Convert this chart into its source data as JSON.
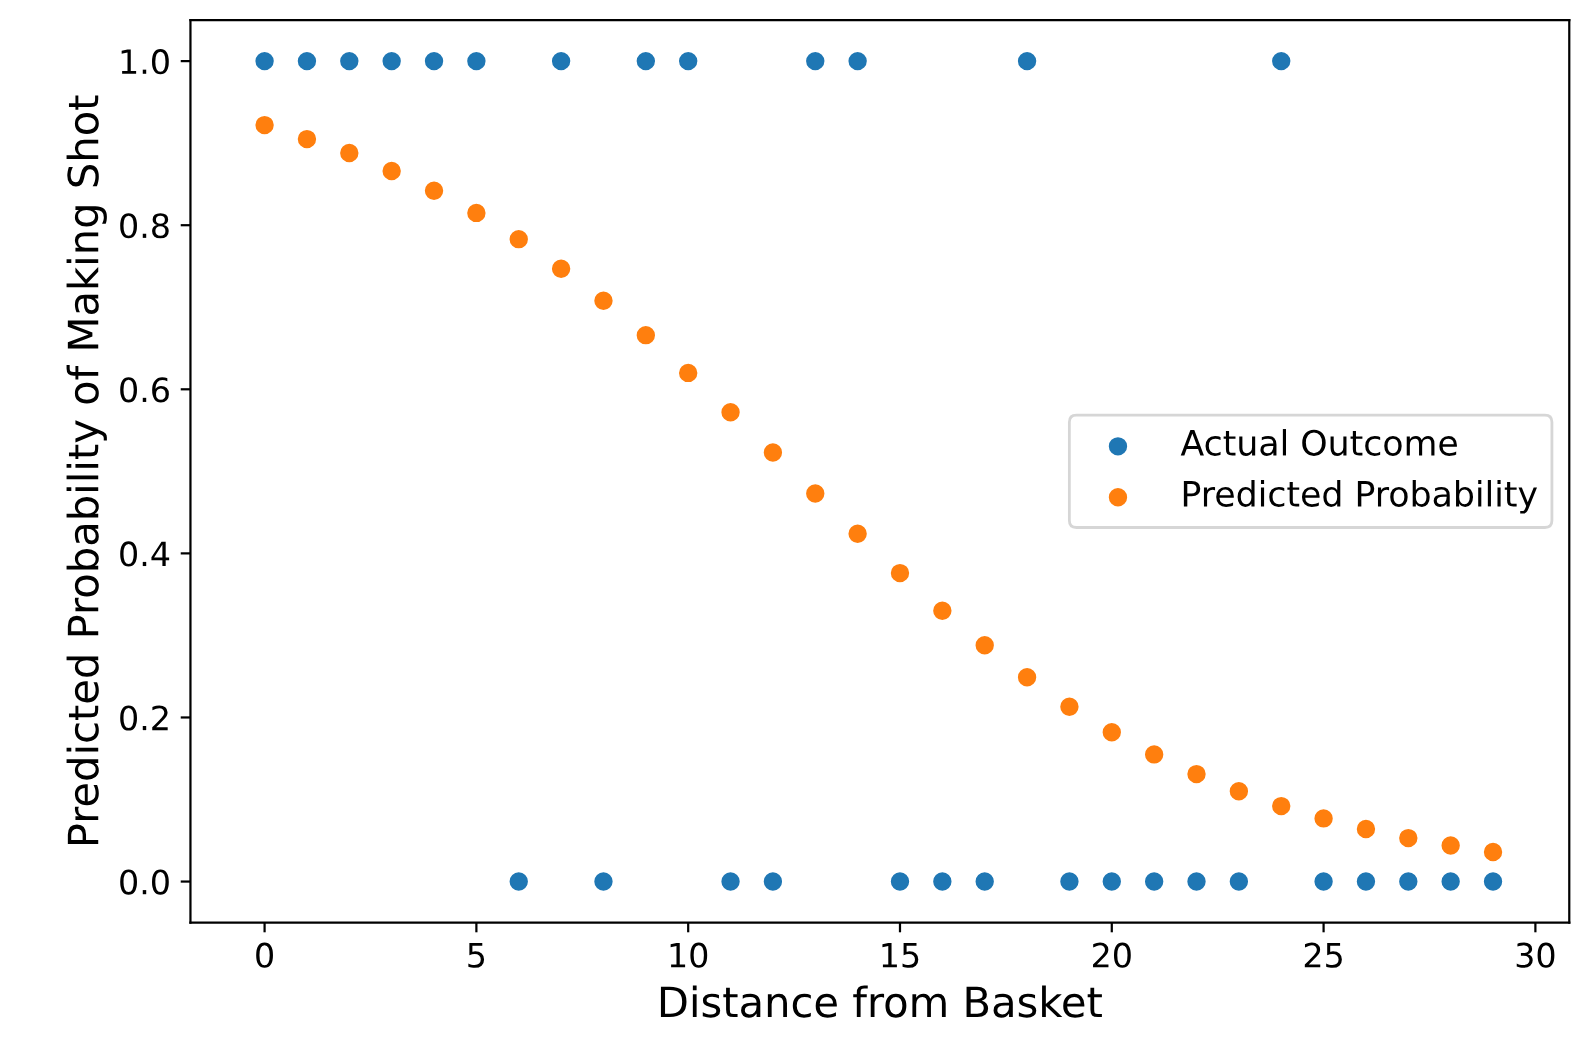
{
  "chart_data": {
    "type": "scatter",
    "xlabel": "Distance from Basket",
    "ylabel": "Predicted Probability of Making Shot",
    "xlim": [
      -1.75,
      30.8
    ],
    "ylim": [
      -0.05,
      1.05
    ],
    "xticks": [
      0,
      5,
      10,
      15,
      20,
      25,
      30
    ],
    "yticks": [
      {
        "value": 0,
        "label": "0.0"
      },
      {
        "value": 0.2,
        "label": "0.2"
      },
      {
        "value": 0.4,
        "label": "0.4"
      },
      {
        "value": 0.6,
        "label": "0.6"
      },
      {
        "value": 0.8,
        "label": "0.8"
      },
      {
        "value": 1,
        "label": "1.0"
      }
    ],
    "grid": false,
    "legend": "right",
    "marker": "circle",
    "series": [
      {
        "name": "Actual Outcome",
        "color": "#1f77b4",
        "x": [
          0,
          1,
          2,
          3,
          4,
          5,
          6,
          7,
          8,
          9,
          10,
          11,
          12,
          13,
          14,
          15,
          16,
          17,
          18,
          19,
          20,
          21,
          22,
          23,
          24,
          25,
          26,
          27,
          28,
          29
        ],
        "values": [
          1,
          1,
          1,
          1,
          1,
          1,
          0,
          1,
          0,
          1,
          1,
          0,
          0,
          1,
          1,
          0,
          0,
          0,
          1,
          0,
          0,
          0,
          0,
          0,
          1,
          0,
          0,
          0,
          0,
          0
        ]
      },
      {
        "name": "Predicted Probability",
        "color": "#ff7f0e",
        "x": [
          0,
          1,
          2,
          3,
          4,
          5,
          6,
          7,
          8,
          9,
          10,
          11,
          12,
          13,
          14,
          15,
          16,
          17,
          18,
          19,
          20,
          21,
          22,
          23,
          24,
          25,
          26,
          27,
          28,
          29
        ],
        "values": [
          0.922,
          0.905,
          0.888,
          0.866,
          0.842,
          0.815,
          0.783,
          0.747,
          0.708,
          0.666,
          0.62,
          0.572,
          0.523,
          0.473,
          0.424,
          0.376,
          0.33,
          0.288,
          0.249,
          0.213,
          0.182,
          0.155,
          0.131,
          0.11,
          0.092,
          0.077,
          0.064,
          0.053,
          0.044,
          0.036
        ]
      }
    ]
  }
}
